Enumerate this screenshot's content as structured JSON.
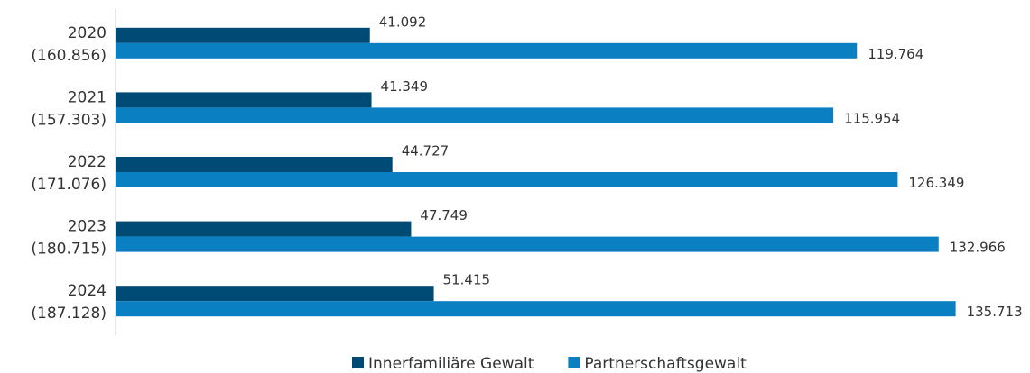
{
  "chart_data": {
    "type": "bar",
    "orientation": "horizontal",
    "categories": [
      [
        "2020",
        "(160.856)"
      ],
      [
        "2021",
        "(157.303)"
      ],
      [
        "2022",
        "(171.076)"
      ],
      [
        "2023",
        "(180.715)"
      ],
      [
        "2024",
        "(187.128)"
      ]
    ],
    "series": [
      {
        "name": "Innerfamiliäre Gewalt",
        "color": "#004b76",
        "values": [
          41092,
          41349,
          44727,
          47749,
          51415
        ],
        "value_labels": [
          "41.092",
          "41.349",
          "44.727",
          "47.749",
          "51.415"
        ]
      },
      {
        "name": "Partnerschaftsgewalt",
        "color": "#0a7fc2",
        "values": [
          119764,
          115954,
          126349,
          132966,
          135713
        ],
        "value_labels": [
          "119.764",
          "115.954",
          "126.349",
          "132.966",
          "135.713"
        ]
      }
    ],
    "xlim": [
      0,
      140000
    ],
    "legend": "bottom"
  }
}
